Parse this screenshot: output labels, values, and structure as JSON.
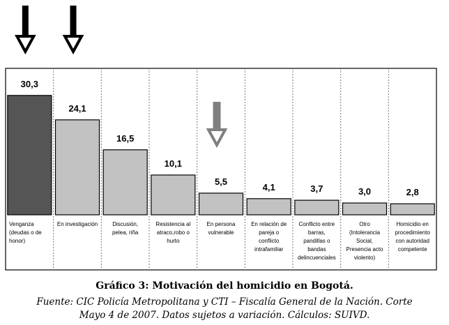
{
  "chart_data": {
    "type": "bar",
    "title": "",
    "xlabel": "",
    "ylabel": "",
    "ylim": [
      0,
      34
    ],
    "grid": "vertical-dashed-separators",
    "categories": [
      [
        "Venganza",
        "(deudas o de",
        "honor)"
      ],
      [
        "En investigación"
      ],
      [
        "Discusión,",
        "pelea, riña"
      ],
      [
        "Resistencia al",
        "atraco,robo o",
        "hurto"
      ],
      [
        "En persona",
        "vulnerable"
      ],
      [
        "En relación de",
        "pareja o",
        "conflicto",
        "intrafamiliar"
      ],
      [
        "Conflicto entre",
        "barras,",
        "pandillas o",
        "bandas",
        "delincuenciales"
      ],
      [
        "Otro",
        "(Intolerancia",
        "Social,",
        "Presencia acto",
        "violento)"
      ],
      [
        "Homicidio en",
        "procedimiento",
        "con autoridad",
        "competente"
      ]
    ],
    "values": [
      30.3,
      24.1,
      16.5,
      10.1,
      5.5,
      4.1,
      3.7,
      3.0,
      2.8
    ],
    "value_labels": [
      "30,3",
      "24,1",
      "16,5",
      "10,1",
      "5,5",
      "4,1",
      "3,7",
      "3,0",
      "2,8"
    ],
    "bar_colors": [
      "#555555",
      "#c2c2c2",
      "#c2c2c2",
      "#c2c2c2",
      "#c2c2c2",
      "#c2c2c2",
      "#c2c2c2",
      "#c2c2c2",
      "#c2c2c2"
    ],
    "annotations": [
      {
        "type": "down-arrow",
        "category_index": 0,
        "color": "#000000"
      },
      {
        "type": "down-arrow",
        "category_index": 1,
        "color": "#000000"
      },
      {
        "type": "down-arrow",
        "category_index": 4,
        "color": "#808080"
      }
    ]
  },
  "caption": {
    "title": "Gráfico 3: Motivación del homicidio en Bogotá.",
    "source_line1": "Fuente: CIC Policía Metropolitana y CTI – Fiscalía General de la Nación. Corte",
    "source_line2": "Mayo 4 de 2007. Datos sujetos a variación. Cálculos: SUIVD."
  }
}
